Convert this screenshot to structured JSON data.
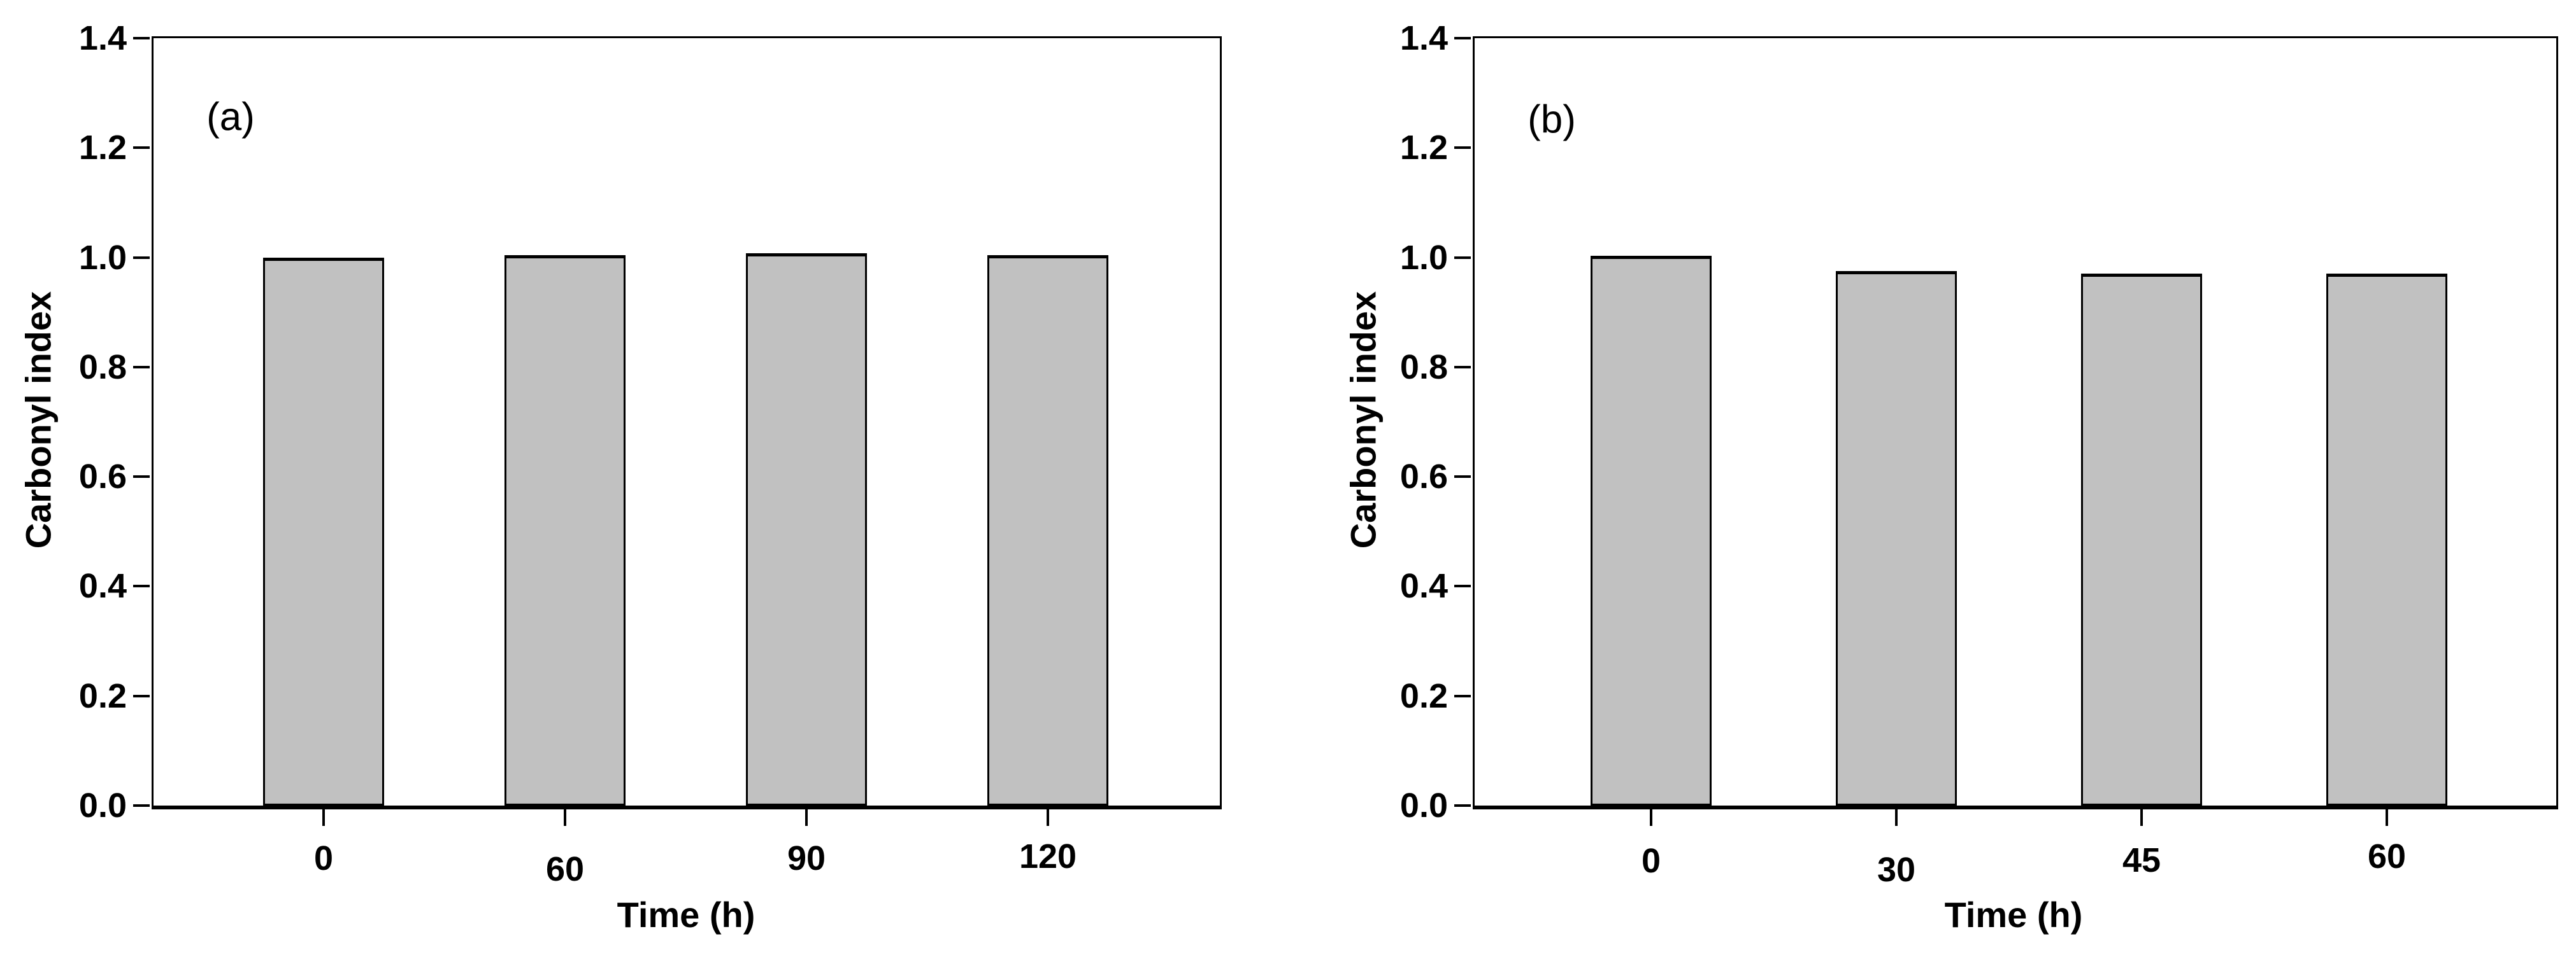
{
  "figure": {
    "background_color": "#ffffff",
    "text_color": "#000000",
    "bar_fill_color": "#c1c1c1",
    "bar_outline_color": "#000000"
  },
  "chart_data": [
    {
      "id": "a",
      "type": "bar",
      "panel_label": "(a)",
      "xlabel": "Time (h)",
      "ylabel": "Carbonyl index",
      "categories": [
        "0",
        "60",
        "90",
        "120"
      ],
      "values": [
        1.0,
        1.004,
        1.008,
        1.004
      ],
      "ylim": [
        0.0,
        1.4
      ],
      "ytick_step": 0.2,
      "ytick_labels": [
        "0.0",
        "0.2",
        "0.4",
        "0.6",
        "0.8",
        "1.0",
        "1.2",
        "1.4"
      ],
      "grid": false,
      "legend": "none",
      "bar_color": "#c1c1c1",
      "bar_border_color": "#000000"
    },
    {
      "id": "b",
      "type": "bar",
      "panel_label": "(b)",
      "xlabel": "Time (h)",
      "ylabel": "Carbonyl index",
      "categories": [
        "0",
        "30",
        "45",
        "60"
      ],
      "values": [
        1.003,
        0.975,
        0.97,
        0.97
      ],
      "ylim": [
        0.0,
        1.4
      ],
      "ytick_step": 0.2,
      "ytick_labels": [
        "0.0",
        "0.2",
        "0.4",
        "0.6",
        "0.8",
        "1.0",
        "1.2",
        "1.4"
      ],
      "grid": false,
      "legend": "none",
      "bar_color": "#c1c1c1",
      "bar_border_color": "#000000"
    }
  ]
}
